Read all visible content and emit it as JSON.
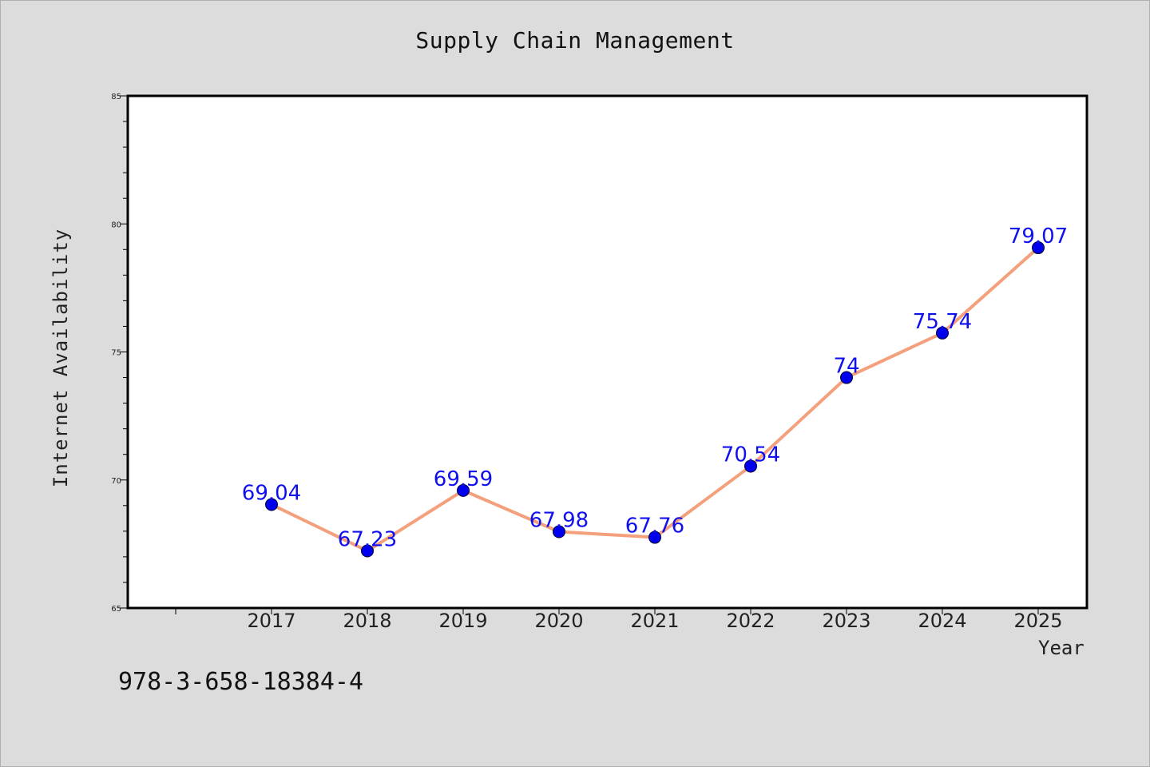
{
  "chart_data": {
    "type": "line",
    "title": "Supply Chain Management",
    "xlabel": "Year",
    "ylabel": "Internet Availability",
    "categories": [
      "2017",
      "2018",
      "2019",
      "2020",
      "2021",
      "2022",
      "2023",
      "2024",
      "2025"
    ],
    "series": [
      {
        "values": [
          69.04,
          67.23,
          69.59,
          67.98,
          67.76,
          70.54,
          74,
          75.74,
          79.07
        ],
        "data_labels": [
          "69.04",
          "67.23",
          "69.59",
          "67.98",
          "67.76",
          "70.54",
          "74",
          "75.74",
          "79.07"
        ]
      }
    ],
    "ylim": [
      65,
      85
    ],
    "y_ticks": [
      "65",
      "70",
      "75",
      "80",
      "85"
    ],
    "grid": false,
    "legend": "none",
    "colors": {
      "line": "#f4a07c",
      "marker": "#0000ee",
      "data_label": "#1010ee",
      "plot_background": "#ffffff",
      "page_background": "#dcdcdc"
    }
  },
  "footer": {
    "code": "978-3-658-18384-4"
  }
}
